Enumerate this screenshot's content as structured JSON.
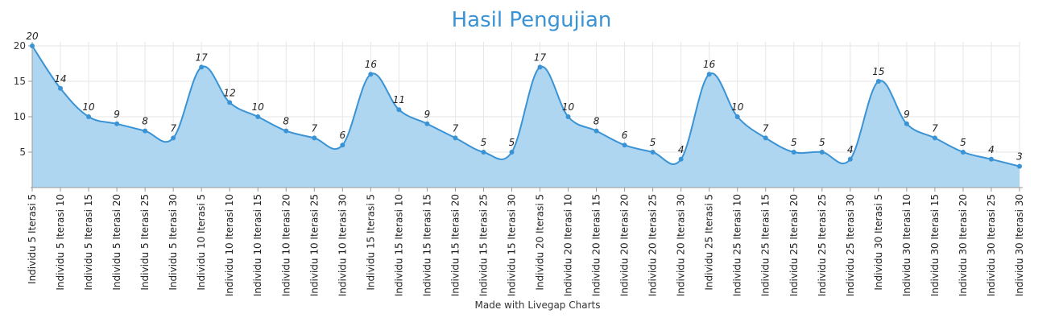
{
  "chart_data": {
    "type": "area",
    "title": "Hasil Pengujian",
    "xlabel": "",
    "ylabel": "",
    "ylim": [
      0,
      20
    ],
    "yticks": [
      5,
      10,
      15,
      20
    ],
    "grid": true,
    "smooth": true,
    "categories": [
      "Individu 5 Iterasi 5",
      "Individu 5 Iterasi 10",
      "Individu 5 Iterasi 15",
      "Individu 5 Iterasi 20",
      "Individu 5 Iterasi 25",
      "Individu 5 Iterasi 30",
      "Individu 10 Iterasi 5",
      "Individu 10 Iterasi 10",
      "Individu 10 Iterasi 15",
      "Individu 10 Iterasi 20",
      "Individu 10 Iterasi 25",
      "Individu 10 Iterasi 30",
      "Individu 15 Iterasi 5",
      "Individu 15 Iterasi 10",
      "Individu 15 Iterasi 15",
      "Individu 15 Iterasi 20",
      "Individu 15 Iterasi 25",
      "Individu 15 Iterasi 30",
      "Individu 20 Iterasi 5",
      "Individu 20 Iterasi 10",
      "Individu 20 Iterasi 15",
      "Individu 20 Iterasi 20",
      "Individu 20 Iterasi 25",
      "Individu 20 Iterasi 30",
      "Individu 25 Iterasi 5",
      "Individu 25 Iterasi 10",
      "Individu 25 Iterasi 15",
      "Individu 25 Iterasi 20",
      "Individu 25 Iterasi 25",
      "Individu 25 Iterasi 30",
      "Individu 30 Iterasi 5",
      "Individu 30 Iterasi 10",
      "Individu 30 Iterasi 15",
      "Individu 30 Iterasi 20",
      "Individu 30 Iterasi 25",
      "Individu 30 Iterasi 30"
    ],
    "series": [
      {
        "values": [
          20,
          14,
          10,
          9,
          8,
          7,
          17,
          12,
          10,
          8,
          7,
          6,
          16,
          11,
          9,
          7,
          5,
          5,
          17,
          10,
          8,
          6,
          5,
          4,
          16,
          10,
          7,
          5,
          5,
          4,
          15,
          9,
          7,
          5,
          4,
          3
        ],
        "line_color": "#3a93d4",
        "fill_color": "#aed6f1"
      }
    ]
  },
  "footer": {
    "credit": "Made with Livegap Charts"
  }
}
